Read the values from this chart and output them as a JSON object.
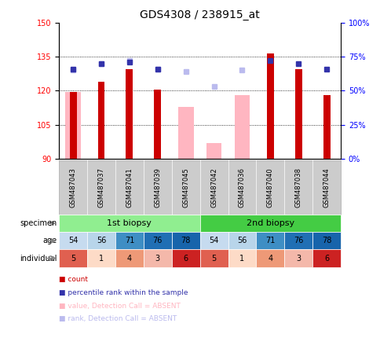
{
  "title": "GDS4308 / 238915_at",
  "samples": [
    "GSM487043",
    "GSM487037",
    "GSM487041",
    "GSM487039",
    "GSM487045",
    "GSM487042",
    "GSM487036",
    "GSM487040",
    "GSM487038",
    "GSM487044"
  ],
  "ylim": [
    90,
    150
  ],
  "yticks": [
    90,
    105,
    120,
    135,
    150
  ],
  "right_ytick_labels": [
    "0%",
    "25%",
    "50%",
    "75%",
    "100%"
  ],
  "bar_bottom": 90,
  "count_values": [
    119.5,
    124.0,
    129.5,
    120.5,
    null,
    null,
    null,
    136.5,
    129.5,
    118.0
  ],
  "absent_values": [
    119.5,
    null,
    null,
    null,
    113.0,
    97.0,
    118.0,
    null,
    null,
    null
  ],
  "percentile_dark": [
    0.66,
    0.7,
    0.71,
    0.66,
    null,
    null,
    null,
    0.72,
    0.7,
    0.66
  ],
  "percentile_absent": [
    0.65,
    0.7,
    0.72,
    0.66,
    0.64,
    0.53,
    0.65,
    null,
    null,
    null
  ],
  "specimen_groups": [
    {
      "label": "1st biopsy",
      "start": 0,
      "end": 4,
      "color": "#90EE90"
    },
    {
      "label": "2nd biopsy",
      "start": 5,
      "end": 9,
      "color": "#44CC44"
    }
  ],
  "age_values": [
    54,
    56,
    71,
    76,
    78,
    54,
    56,
    71,
    76,
    78
  ],
  "individual_values": [
    5,
    1,
    4,
    3,
    6,
    5,
    1,
    4,
    3,
    6
  ],
  "count_color": "#CC0000",
  "absent_bar_color": "#FFB6C1",
  "absent_rank_color": "#BBBBEE",
  "dark_rank_color": "#3333AA",
  "bg_color": "#FFFFFF",
  "grid_color": "#000000",
  "xlabel_color": "#FF0000",
  "right_axis_color": "#0000FF",
  "specimen_label_color": "#000000",
  "row_label_fontsize": 7,
  "tick_fontsize": 7,
  "bar_fontsize": 7,
  "title_fontsize": 10,
  "age_cmap_min": 0.25,
  "age_cmap_range": 0.55,
  "ind_colors": {
    "1": "#FDDBC7",
    "3": "#F4B8AA",
    "4": "#EE9977",
    "5": "#E06050",
    "6": "#CC2222"
  }
}
